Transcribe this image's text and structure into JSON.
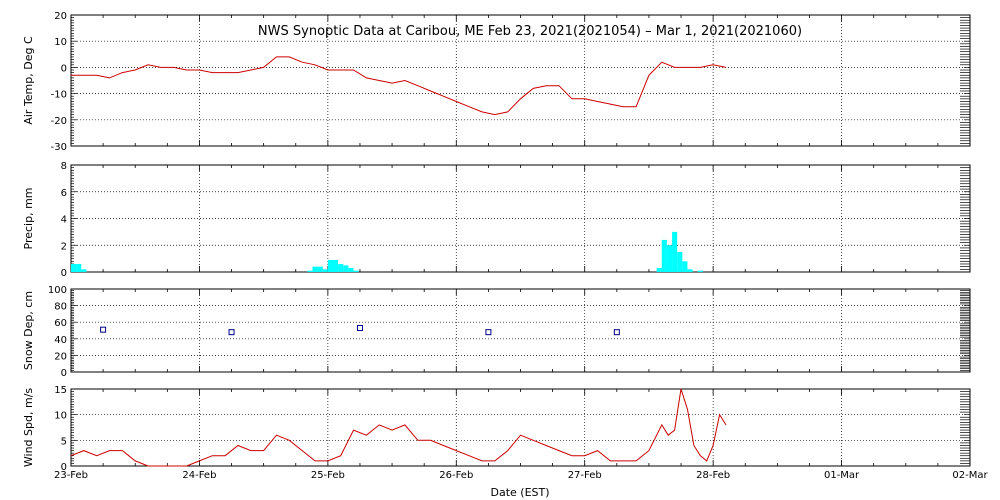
{
  "title": "NWS Synoptic Data at Caribou, ME   Feb 23, 2021(2021054) – Mar  1, 2021(2021060)",
  "xlabel": "Date (EST)",
  "x_ticks": [
    "23-Feb",
    "24-Feb",
    "25-Feb",
    "26-Feb",
    "27-Feb",
    "28-Feb",
    "01-Mar",
    "02-Mar"
  ],
  "colors": {
    "line": "#cc0000",
    "bar": "#00ffff",
    "marker": "#000080",
    "grid": "#000000"
  },
  "chart_data": [
    {
      "type": "line",
      "ylabel": "Air Temp, Deg C",
      "ylim": [
        -30,
        20
      ],
      "yticks": [
        -30,
        -20,
        -10,
        0,
        10,
        20
      ],
      "x_unit": "days since 23-Feb 00:00 EST",
      "x": [
        0.0,
        0.1,
        0.2,
        0.3,
        0.4,
        0.5,
        0.6,
        0.7,
        0.8,
        0.9,
        1.0,
        1.1,
        1.2,
        1.3,
        1.4,
        1.5,
        1.6,
        1.7,
        1.8,
        1.9,
        2.0,
        2.1,
        2.2,
        2.3,
        2.4,
        2.5,
        2.6,
        2.7,
        2.8,
        2.9,
        3.0,
        3.1,
        3.2,
        3.3,
        3.4,
        3.5,
        3.6,
        3.7,
        3.8,
        3.9,
        4.0,
        4.1,
        4.2,
        4.3,
        4.4,
        4.5,
        4.6,
        4.7,
        4.8,
        4.9,
        5.0,
        5.1
      ],
      "values": [
        -3,
        -3,
        -3,
        -4,
        -2,
        -1,
        1,
        0,
        0,
        -1,
        -1,
        -2,
        -2,
        -2,
        -1,
        0,
        4,
        4,
        2,
        1,
        -1,
        -1,
        -1,
        -4,
        -5,
        -6,
        -5,
        -7,
        -9,
        -11,
        -13,
        -15,
        -17,
        -18,
        -17,
        -12,
        -8,
        -7,
        -7,
        -12,
        -12,
        -13,
        -14,
        -15,
        -15,
        -3,
        2,
        0,
        0,
        0,
        1,
        0
      ]
    },
    {
      "type": "bar",
      "ylabel": "Precip, mm",
      "ylim": [
        0,
        8
      ],
      "yticks": [
        0,
        2,
        4,
        6,
        8
      ],
      "x_unit": "days since 23-Feb 00:00 EST",
      "bar_width": 0.04,
      "x": [
        0.0,
        0.04,
        0.08,
        1.84,
        1.88,
        1.92,
        1.96,
        2.0,
        2.04,
        2.08,
        2.12,
        2.16,
        2.2,
        4.56,
        4.6,
        4.64,
        4.68,
        4.72,
        4.76,
        4.8,
        4.84,
        4.88,
        4.92
      ],
      "values": [
        0.6,
        0.6,
        0.2,
        0.1,
        0.4,
        0.4,
        0.2,
        0.9,
        0.9,
        0.6,
        0.5,
        0.3,
        0.1,
        0.3,
        2.4,
        2.0,
        3.0,
        1.5,
        0.8,
        0.2,
        0.0,
        0.1,
        0.0
      ]
    },
    {
      "type": "scatter",
      "ylabel": "Snow Dep, cm",
      "ylim": [
        0,
        100
      ],
      "yticks": [
        0,
        20,
        40,
        60,
        80,
        100
      ],
      "x_unit": "days since 23-Feb 00:00 EST",
      "x": [
        0.25,
        1.25,
        2.25,
        3.25,
        4.25
      ],
      "values": [
        51,
        48,
        53,
        48,
        48
      ]
    },
    {
      "type": "line",
      "ylabel": "Wind Spd, m/s",
      "ylim": [
        0,
        15
      ],
      "yticks": [
        0,
        5,
        10,
        15
      ],
      "x_unit": "days since 23-Feb 00:00 EST",
      "x": [
        0.0,
        0.1,
        0.2,
        0.3,
        0.4,
        0.5,
        0.6,
        0.7,
        0.8,
        0.9,
        1.0,
        1.1,
        1.2,
        1.3,
        1.4,
        1.5,
        1.6,
        1.7,
        1.8,
        1.9,
        2.0,
        2.1,
        2.2,
        2.3,
        2.4,
        2.5,
        2.6,
        2.7,
        2.8,
        2.9,
        3.0,
        3.1,
        3.2,
        3.3,
        3.4,
        3.5,
        3.6,
        3.7,
        3.8,
        3.9,
        4.0,
        4.1,
        4.2,
        4.3,
        4.4,
        4.5,
        4.6,
        4.65,
        4.7,
        4.75,
        4.8,
        4.85,
        4.9,
        4.95,
        5.0,
        5.05,
        5.1
      ],
      "values": [
        2,
        3,
        2,
        3,
        3,
        1,
        0,
        0,
        0,
        0,
        1,
        2,
        2,
        4,
        3,
        3,
        6,
        5,
        3,
        1,
        1,
        2,
        7,
        6,
        8,
        7,
        8,
        5,
        5,
        4,
        3,
        2,
        1,
        1,
        3,
        6,
        5,
        4,
        3,
        2,
        2,
        3,
        1,
        1,
        1,
        3,
        8,
        6,
        7,
        15,
        11,
        4,
        2,
        1,
        4,
        10,
        8
      ]
    }
  ]
}
